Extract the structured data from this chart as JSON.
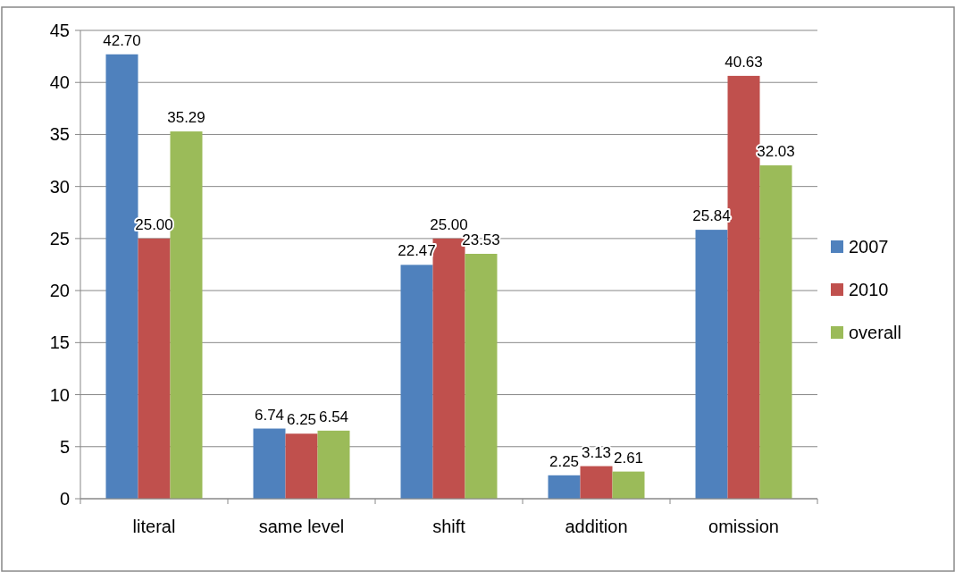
{
  "chart_data": {
    "type": "bar",
    "categories": [
      "literal",
      "same level",
      "shift",
      "addition",
      "omission"
    ],
    "series": [
      {
        "name": "2007",
        "color": "#4f81bd",
        "values": [
          42.7,
          6.74,
          22.47,
          2.25,
          25.84
        ],
        "value_labels": [
          "42.70",
          "6.74",
          "22.47",
          "2.25",
          "25.84"
        ]
      },
      {
        "name": "2010",
        "color": "#c0504d",
        "values": [
          25,
          6.25,
          25,
          3.13,
          40.63
        ],
        "value_labels": [
          "25.00",
          "6.25",
          "25.00",
          "3.13",
          "40.63"
        ]
      },
      {
        "name": "overall",
        "color": "#9bbb59",
        "values": [
          35.29,
          6.54,
          23.53,
          2.61,
          32.03
        ],
        "value_labels": [
          "35.29",
          "6.54",
          "23.53",
          "2.61",
          "32.03"
        ]
      }
    ],
    "ylim": [
      0,
      45
    ],
    "yticks": [
      0,
      5,
      10,
      15,
      20,
      25,
      30,
      35,
      40,
      45
    ],
    "grid": "y",
    "legend": "right"
  }
}
